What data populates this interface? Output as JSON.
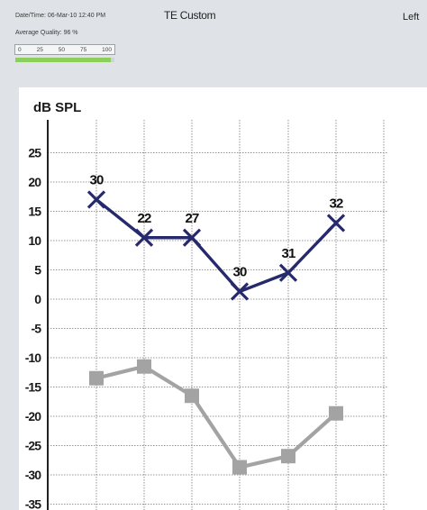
{
  "header": {
    "datetime": "Date/Time: 06-Mar-10 12:40 PM",
    "average_quality_label": "Average Quality:",
    "average_quality_value": "96 %",
    "average_quality_fraction": 0.96,
    "title": "TE Custom",
    "ear": "Left",
    "quality_scale": [
      "0",
      "25",
      "50",
      "75",
      "100"
    ],
    "quality_color": "#8ccf5a"
  },
  "chart_data": {
    "type": "line",
    "ylabel": "dB SPL",
    "ylim": [
      -36,
      28
    ],
    "yticks": [
      25,
      20,
      15,
      10,
      5,
      0,
      -5,
      -10,
      -15,
      -20,
      -25,
      -30,
      -35
    ],
    "x": [
      1,
      2,
      3,
      4,
      5,
      6
    ],
    "grid": true,
    "series": [
      {
        "marker": "x",
        "color": "#262a6d",
        "values": [
          17,
          10.5,
          10.5,
          1.3,
          4.5,
          13
        ],
        "labels": [
          "30",
          "22",
          "27",
          "30",
          "31",
          "32"
        ]
      },
      {
        "marker": "square",
        "color": "#a3a3a3",
        "values": [
          -13.5,
          -11.5,
          -16.5,
          -28.7,
          -26.8,
          -19.5
        ]
      }
    ]
  }
}
